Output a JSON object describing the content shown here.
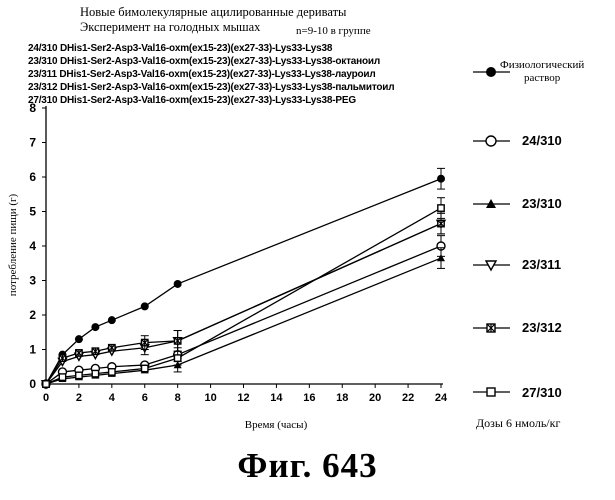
{
  "header": {
    "title_line1": "Новые бимолекулярные ацилированные дериваты",
    "title_line2": "Эксперимент на голодных мышах",
    "n_note": "n=9-10 в группе"
  },
  "sequences": [
    "24/310 DHis1-Ser2-Asp3-Val16-oxm(ex15-23)(ex27-33)-Lys33-Lys38",
    "23/310 DHis1-Ser2-Asp3-Val16-oxm(ex15-23)(ex27-33)-Lys33-Lys38-октаноил",
    "23/311 DHis1-Ser2-Asp3-Val16-oxm(ex15-23)(ex27-33)-Lys33-Lys38-лауроил",
    "23/312 DHis1-Ser2-Asp3-Val16-oxm(ex15-23)(ex27-33)-Lys33-Lys38-пальмитоил",
    "27/310 DHis1-Ser2-Asp3-Val16-oxm(ex15-23)(ex27-33)-Lys33-Lys38-PEG"
  ],
  "legend": {
    "phys_line1": "Физиологический",
    "phys_line2": "раствор",
    "items": [
      "24/310",
      "23/310",
      "23/311",
      "23/312",
      "27/310"
    ]
  },
  "doses": "Дозы 6 нмоль/кг",
  "figure_caption": "Фиг. 643",
  "chart_data": {
    "type": "line",
    "xlabel": "Время (часы)",
    "ylabel": "потребление пищи (г)",
    "xlim": [
      0,
      24
    ],
    "ylim": [
      0,
      8
    ],
    "xticks": [
      0,
      2,
      4,
      6,
      8,
      10,
      12,
      14,
      16,
      18,
      20,
      22,
      24
    ],
    "yticks": [
      0,
      1,
      2,
      3,
      4,
      5,
      6,
      7,
      8
    ],
    "legend_position": "right",
    "series": [
      {
        "name": "Физиологический раствор",
        "marker": "filled-circle",
        "x": [
          0,
          1,
          2,
          3,
          4,
          6,
          8,
          24
        ],
        "y": [
          0,
          0.85,
          1.3,
          1.65,
          1.85,
          2.25,
          2.9,
          5.95
        ],
        "err": [
          0,
          0,
          0,
          0,
          0,
          0,
          0,
          0.3
        ]
      },
      {
        "name": "24/310",
        "marker": "open-circle",
        "x": [
          0,
          1,
          2,
          3,
          4,
          6,
          8,
          24
        ],
        "y": [
          0,
          0.35,
          0.4,
          0.45,
          0.5,
          0.55,
          0.85,
          4.0
        ],
        "err": [
          0,
          0,
          0,
          0,
          0,
          0,
          0.2,
          0.3
        ]
      },
      {
        "name": "23/310",
        "marker": "filled-triangle",
        "x": [
          0,
          1,
          2,
          3,
          4,
          6,
          8,
          24
        ],
        "y": [
          0,
          0.15,
          0.2,
          0.25,
          0.3,
          0.4,
          0.55,
          3.65
        ],
        "err": [
          0,
          0,
          0,
          0,
          0,
          0,
          0.2,
          0.3
        ]
      },
      {
        "name": "23/311",
        "marker": "open-triangle-down",
        "x": [
          0,
          1,
          2,
          3,
          4,
          6,
          8,
          24
        ],
        "y": [
          0,
          0.65,
          0.8,
          0.85,
          0.95,
          1.05,
          1.25,
          4.65
        ],
        "err": [
          0,
          0,
          0,
          0,
          0,
          0.2,
          0.3,
          0.3
        ]
      },
      {
        "name": "23/312",
        "marker": "star-square",
        "x": [
          0,
          1,
          2,
          3,
          4,
          6,
          8,
          24
        ],
        "y": [
          0,
          0.75,
          0.9,
          0.95,
          1.05,
          1.2,
          1.25,
          4.65
        ],
        "err": [
          0,
          0,
          0,
          0,
          0,
          0.2,
          0.3,
          0.3
        ]
      },
      {
        "name": "27/310",
        "marker": "open-square",
        "x": [
          0,
          1,
          2,
          3,
          4,
          6,
          8,
          24
        ],
        "y": [
          0,
          0.2,
          0.25,
          0.3,
          0.35,
          0.45,
          0.75,
          5.1
        ],
        "err": [
          0,
          0,
          0,
          0,
          0,
          0,
          0.2,
          0.3
        ]
      }
    ]
  }
}
